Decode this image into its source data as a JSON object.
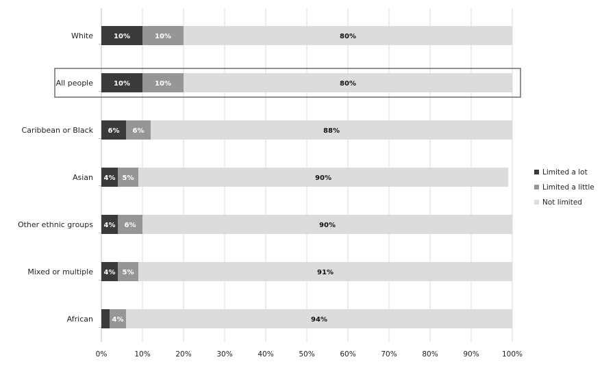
{
  "chart_data": {
    "type": "bar",
    "orientation": "horizontal",
    "stacked": "100%",
    "title": "",
    "xlabel": "",
    "ylabel": "",
    "xlim": [
      0,
      100
    ],
    "x_ticks": [
      "0%",
      "10%",
      "20%",
      "30%",
      "40%",
      "50%",
      "60%",
      "70%",
      "80%",
      "90%",
      "100%"
    ],
    "grid": "vertical",
    "legend_position": "right",
    "categories": [
      "White",
      "All people",
      "Caribbean or Black",
      "Asian",
      "Other ethnic groups",
      "Mixed or multiple",
      "African"
    ],
    "highlighted_category": "All people",
    "series": [
      {
        "name": "Limited a lot",
        "color": "#3a3a3a",
        "label_color": "#ffffff",
        "values": [
          10,
          10,
          6,
          4,
          4,
          4,
          2
        ],
        "labels": [
          "10%",
          "10%",
          "6%",
          "4%",
          "4%",
          "4%",
          ""
        ]
      },
      {
        "name": "Limited a little",
        "color": "#969696",
        "label_color": "#ffffff",
        "values": [
          10,
          10,
          6,
          5,
          6,
          5,
          4
        ],
        "labels": [
          "10%",
          "10%",
          "6%",
          "5%",
          "6%",
          "5%",
          "4%"
        ]
      },
      {
        "name": "Not limited",
        "color": "#dcdcdc",
        "label_color": "#111111",
        "values": [
          80,
          80,
          88,
          90,
          90,
          91,
          94
        ],
        "labels": [
          "80%",
          "80%",
          "88%",
          "90%",
          "90%",
          "91%",
          "94%"
        ]
      }
    ]
  }
}
